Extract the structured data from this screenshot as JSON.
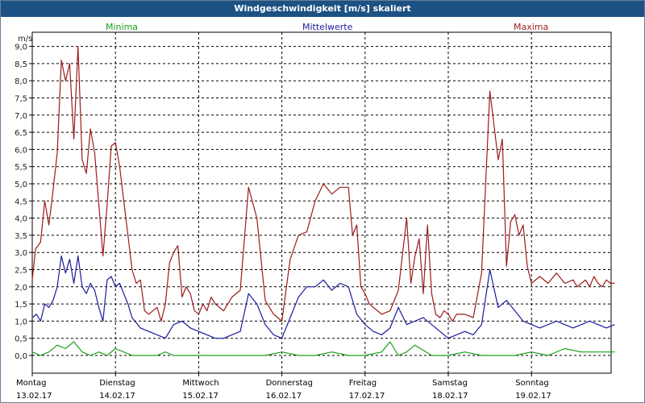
{
  "window": {
    "title": "Windgeschwindigkeit [m/s] skaliert"
  },
  "legend": {
    "min": "Minima",
    "mean": "Mittelwerte",
    "max": "Maxima"
  },
  "colors": {
    "min": "#1aa01a",
    "mean": "#1b1b9c",
    "max": "#9c1b1b",
    "grid": "#000000",
    "title_bg": "#1c5183"
  },
  "chart_data": {
    "type": "line",
    "title": "Windgeschwindigkeit [m/s] skaliert",
    "ylabel": "m/s",
    "ylim": [
      -0.3,
      9.2
    ],
    "yticks": [
      "0,0",
      "0,5",
      "1,0",
      "1,5",
      "2,0",
      "2,5",
      "3,0",
      "3,5",
      "4,0",
      "4,5",
      "5,0",
      "5,5",
      "6,0",
      "6,5",
      "7,0",
      "7,5",
      "8,0",
      "8,5",
      "9,0"
    ],
    "x_unit": "days since Monday 13.02.17 00:00",
    "xlim": [
      0,
      7
    ],
    "days": [
      {
        "name": "Montag",
        "date": "13.02.17"
      },
      {
        "name": "Dienstag",
        "date": "14.02.17"
      },
      {
        "name": "Mittwoch",
        "date": "15.02.17"
      },
      {
        "name": "Donnerstag",
        "date": "16.02.17"
      },
      {
        "name": "Freitag",
        "date": "17.02.17"
      },
      {
        "name": "Samstag",
        "date": "18.02.17"
      },
      {
        "name": "Sonntag",
        "date": "19.02.17"
      }
    ],
    "series": [
      {
        "name": "Maxima",
        "color": "#9c1b1b",
        "x": [
          0,
          0.04,
          0.1,
          0.15,
          0.2,
          0.24,
          0.3,
          0.35,
          0.4,
          0.45,
          0.5,
          0.55,
          0.6,
          0.65,
          0.7,
          0.75,
          0.8,
          0.85,
          0.9,
          0.95,
          1.0,
          1.05,
          1.1,
          1.15,
          1.2,
          1.25,
          1.3,
          1.35,
          1.4,
          1.45,
          1.5,
          1.55,
          1.6,
          1.65,
          1.7,
          1.75,
          1.8,
          1.85,
          1.9,
          1.95,
          2.0,
          2.05,
          2.1,
          2.15,
          2.2,
          2.3,
          2.4,
          2.5,
          2.6,
          2.7,
          2.8,
          2.9,
          3.0,
          3.1,
          3.2,
          3.3,
          3.4,
          3.5,
          3.6,
          3.7,
          3.8,
          3.85,
          3.9,
          3.95,
          4.0,
          4.05,
          4.1,
          4.2,
          4.3,
          4.4,
          4.5,
          4.55,
          4.6,
          4.65,
          4.7,
          4.75,
          4.8,
          4.85,
          4.9,
          4.95,
          5.0,
          5.05,
          5.1,
          5.2,
          5.3,
          5.4,
          5.5,
          5.6,
          5.65,
          5.7,
          5.75,
          5.8,
          5.85,
          5.9,
          5.95,
          6.0,
          6.1,
          6.2,
          6.3,
          6.4,
          6.5,
          6.55,
          6.6,
          6.65,
          6.7,
          6.75,
          6.8,
          6.85,
          6.9,
          6.95,
          7.0
        ],
        "values": [
          2.2,
          3.1,
          3.3,
          4.5,
          3.8,
          4.6,
          5.9,
          8.6,
          8.0,
          8.5,
          6.3,
          9.0,
          5.7,
          5.3,
          6.6,
          5.9,
          4.4,
          2.9,
          4.4,
          6.1,
          6.2,
          5.5,
          4.5,
          3.5,
          2.5,
          2.1,
          2.2,
          1.3,
          1.2,
          1.3,
          1.4,
          1.0,
          1.5,
          2.7,
          3.0,
          3.2,
          1.7,
          2.0,
          1.8,
          1.3,
          1.2,
          1.5,
          1.3,
          1.7,
          1.5,
          1.3,
          1.7,
          1.9,
          4.9,
          4.0,
          1.6,
          1.2,
          1.0,
          2.8,
          3.5,
          3.6,
          4.5,
          5.0,
          4.7,
          4.9,
          4.9,
          3.5,
          3.8,
          2.0,
          1.8,
          1.5,
          1.4,
          1.2,
          1.3,
          1.9,
          4.0,
          2.1,
          2.9,
          3.4,
          1.8,
          3.8,
          1.8,
          1.2,
          1.1,
          1.3,
          1.2,
          1.0,
          1.2,
          1.2,
          1.1,
          2.4,
          7.7,
          5.7,
          6.3,
          2.6,
          3.9,
          4.1,
          3.5,
          3.8,
          2.6,
          2.1,
          2.3,
          2.1,
          2.4,
          2.1,
          2.2,
          2.0,
          2.1,
          2.2,
          2.0,
          2.3,
          2.1,
          2.0,
          2.2,
          2.1,
          2.1
        ]
      },
      {
        "name": "Mittelwerte",
        "color": "#1b1b9c",
        "x": [
          0,
          0.05,
          0.1,
          0.15,
          0.2,
          0.25,
          0.3,
          0.35,
          0.4,
          0.45,
          0.5,
          0.55,
          0.6,
          0.65,
          0.7,
          0.75,
          0.8,
          0.85,
          0.9,
          0.95,
          1.0,
          1.05,
          1.1,
          1.15,
          1.2,
          1.3,
          1.4,
          1.5,
          1.6,
          1.7,
          1.8,
          1.9,
          2.0,
          2.1,
          2.2,
          2.3,
          2.4,
          2.5,
          2.6,
          2.7,
          2.8,
          2.9,
          3.0,
          3.1,
          3.2,
          3.3,
          3.4,
          3.5,
          3.6,
          3.7,
          3.8,
          3.9,
          4.0,
          4.1,
          4.2,
          4.3,
          4.4,
          4.5,
          4.6,
          4.7,
          4.8,
          4.9,
          5.0,
          5.1,
          5.2,
          5.3,
          5.4,
          5.5,
          5.6,
          5.7,
          5.8,
          5.9,
          6.0,
          6.1,
          6.2,
          6.3,
          6.4,
          6.5,
          6.6,
          6.7,
          6.8,
          6.9,
          7.0
        ],
        "values": [
          1.1,
          1.2,
          1.0,
          1.5,
          1.4,
          1.6,
          2.0,
          2.9,
          2.4,
          2.8,
          2.1,
          2.9,
          2.0,
          1.8,
          2.1,
          1.9,
          1.4,
          1.0,
          2.2,
          2.3,
          2.0,
          2.1,
          1.8,
          1.5,
          1.1,
          0.8,
          0.7,
          0.6,
          0.5,
          0.9,
          1.0,
          0.8,
          0.7,
          0.6,
          0.5,
          0.5,
          0.6,
          0.7,
          1.8,
          1.5,
          0.9,
          0.6,
          0.5,
          1.1,
          1.7,
          2.0,
          2.0,
          2.2,
          1.9,
          2.1,
          2.0,
          1.2,
          0.9,
          0.7,
          0.6,
          0.8,
          1.4,
          0.9,
          1.0,
          1.1,
          0.9,
          0.7,
          0.5,
          0.6,
          0.7,
          0.6,
          0.9,
          2.5,
          1.4,
          1.6,
          1.3,
          1.0,
          0.9,
          0.8,
          0.9,
          1.0,
          0.9,
          0.8,
          0.9,
          1.0,
          0.9,
          0.8,
          0.9
        ]
      },
      {
        "name": "Minima",
        "color": "#1aa01a",
        "x": [
          0,
          0.1,
          0.2,
          0.3,
          0.4,
          0.5,
          0.6,
          0.7,
          0.8,
          0.9,
          1.0,
          1.1,
          1.2,
          1.3,
          1.4,
          1.5,
          1.6,
          1.7,
          1.8,
          1.9,
          2.0,
          2.2,
          2.4,
          2.6,
          2.8,
          3.0,
          3.2,
          3.4,
          3.6,
          3.8,
          4.0,
          4.2,
          4.3,
          4.4,
          4.5,
          4.6,
          4.8,
          5.0,
          5.2,
          5.4,
          5.6,
          5.8,
          6.0,
          6.2,
          6.4,
          6.6,
          6.8,
          7.0
        ],
        "values": [
          0.1,
          0.0,
          0.1,
          0.3,
          0.2,
          0.4,
          0.1,
          0.0,
          0.1,
          0.0,
          0.2,
          0.1,
          0.0,
          0.0,
          0.0,
          0.0,
          0.1,
          0.0,
          0.0,
          0.0,
          0.0,
          0.0,
          0.0,
          0.0,
          0.0,
          0.1,
          0.0,
          0.0,
          0.1,
          0.0,
          0.0,
          0.1,
          0.4,
          0.0,
          0.1,
          0.3,
          0.0,
          0.0,
          0.1,
          0.0,
          0.0,
          0.0,
          0.1,
          0.0,
          0.2,
          0.1,
          0.1,
          0.1
        ]
      }
    ]
  }
}
